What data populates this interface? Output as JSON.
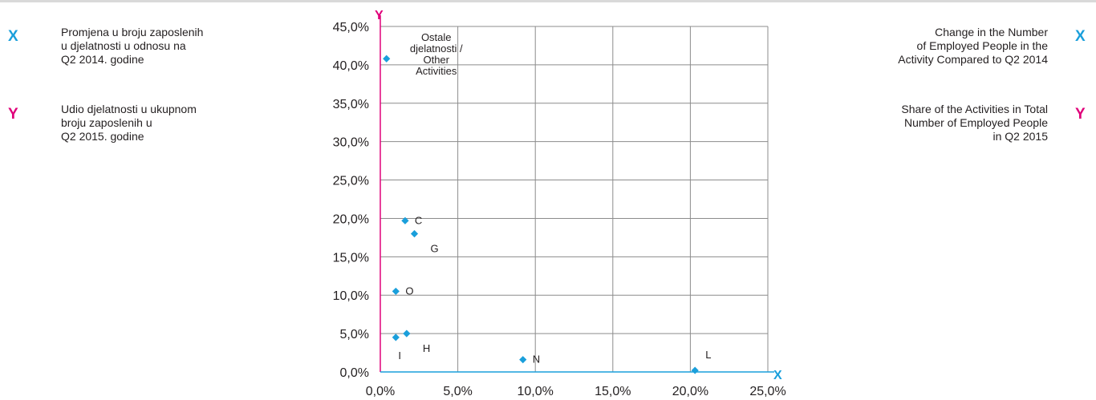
{
  "legend_left": {
    "x_letter": "X",
    "x_text": "Promjena u broju zaposlenih\nu djelatnosti u odnosu na\nQ2 2014. godine",
    "y_letter": "Y",
    "y_text": "Udio djelatnosti u ukupnom\nbroju zaposlenih u\nQ2  2015. godine"
  },
  "legend_right": {
    "x_letter": "X",
    "x_text": "Change in the Number\nof Employed People in the\nActivity Compared to Q2 2014",
    "y_letter": "Y",
    "y_text": "Share of the Activities in Total\nNumber of Employed People\nin Q2 2015"
  },
  "colors": {
    "x_accent": "#1a9fdb",
    "y_accent": "#e0007a",
    "point": "#1a9fdb",
    "grid": "#8c8c8c"
  },
  "chart_data": {
    "type": "scatter",
    "title": "",
    "xlabel": "X",
    "ylabel": "Y",
    "xlim": [
      0,
      25
    ],
    "ylim": [
      0,
      45
    ],
    "x_ticks": [
      0,
      5,
      10,
      15,
      20,
      25
    ],
    "x_tick_labels": [
      "0,0%",
      "5,0%",
      "10,0%",
      "15,0%",
      "20,0%",
      "25,0%"
    ],
    "y_ticks": [
      0,
      5,
      10,
      15,
      20,
      25,
      30,
      35,
      40,
      45
    ],
    "y_tick_labels": [
      "0,0%",
      "5,0%",
      "10,0%",
      "15,0%",
      "20,0%",
      "25,0%",
      "30,0%",
      "35,0%",
      "40,0%",
      "45,0%"
    ],
    "grid": true,
    "points": [
      {
        "label": "Ostale\ndjelatnosti /\nOther\nActivities",
        "x": 0.4,
        "y": 40.8,
        "label_pos": "above-right"
      },
      {
        "label": "C",
        "x": 1.6,
        "y": 19.7,
        "label_pos": "right"
      },
      {
        "label": "G",
        "x": 2.2,
        "y": 18.0,
        "label_pos": "below-right"
      },
      {
        "label": "O",
        "x": 1.0,
        "y": 10.5,
        "label_pos": "right"
      },
      {
        "label": "H",
        "x": 1.7,
        "y": 5.0,
        "label_pos": "below-right"
      },
      {
        "label": "I",
        "x": 1.0,
        "y": 4.5,
        "label_pos": "below"
      },
      {
        "label": "N",
        "x": 9.2,
        "y": 1.6,
        "label_pos": "right"
      },
      {
        "label": "L",
        "x": 20.3,
        "y": 0.2,
        "label_pos": "above-right"
      }
    ]
  }
}
